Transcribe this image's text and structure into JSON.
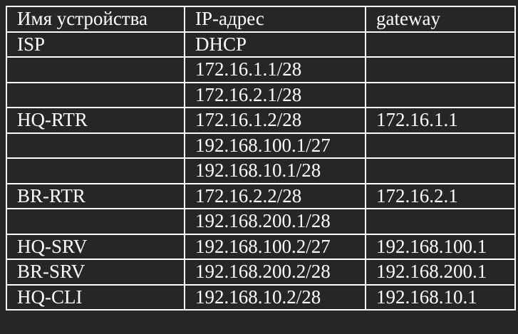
{
  "table": {
    "headers": [
      "Имя устройства",
      "IP-адрес",
      "gateway"
    ],
    "rows": [
      [
        "ISP",
        "DHCP",
        ""
      ],
      [
        "",
        "172.16.1.1/28",
        ""
      ],
      [
        "",
        "172.16.2.1/28",
        ""
      ],
      [
        "HQ-RTR",
        "172.16.1.2/28",
        "172.16.1.1"
      ],
      [
        "",
        "192.168.100.1/27",
        ""
      ],
      [
        "",
        "192.168.10.1/28",
        ""
      ],
      [
        "BR-RTR",
        "172.16.2.2/28",
        "172.16.2.1"
      ],
      [
        "",
        "192.168.200.1/28",
        ""
      ],
      [
        "HQ-SRV",
        "192.168.100.2/27",
        "192.168.100.1"
      ],
      [
        "BR-SRV",
        "192.168.200.2/28",
        "192.168.200.1"
      ],
      [
        "HQ-CLI",
        "192.168.10.2/28",
        "192.168.10.1"
      ]
    ]
  }
}
